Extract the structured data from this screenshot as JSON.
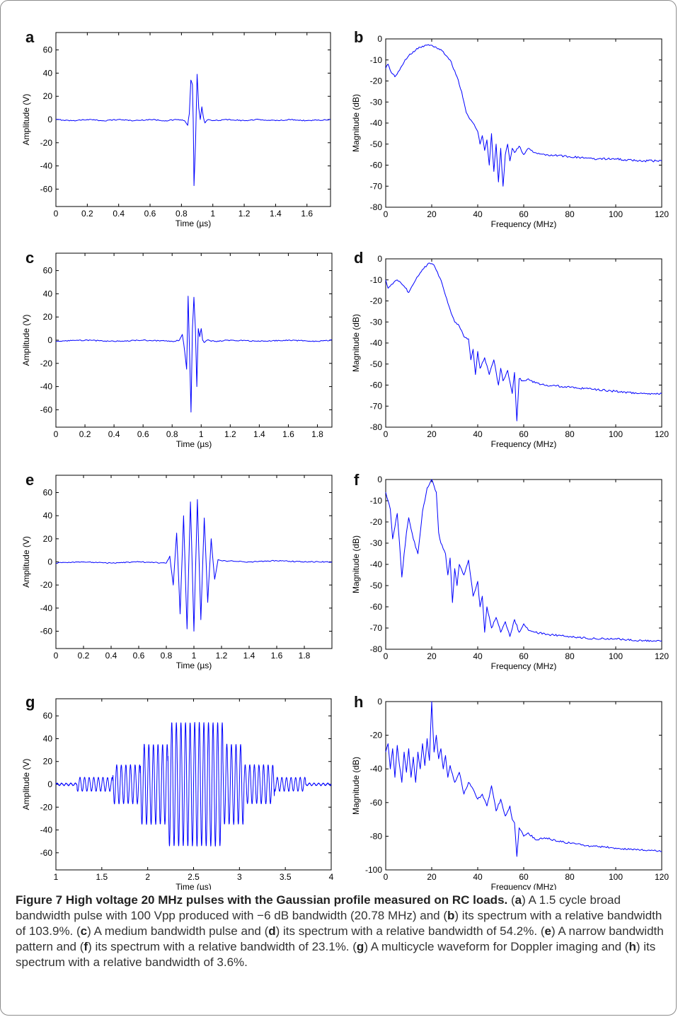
{
  "figure": {
    "caption": {
      "title": "Figure 7 High voltage 20 MHz pulses with the Gaussian profile measured on RC loads.",
      "parts": [
        {
          "open": " (",
          "letter": "a",
          "text": ") A 1.5 cycle broad bandwidth pulse with 100 Vpp produced with −6 dB bandwidth (20.78 MHz) and"
        },
        {
          "open": " (",
          "letter": "b",
          "text": ") its spectrum with a relative bandwidth of 103.9%."
        },
        {
          "open": " (",
          "letter": "c",
          "text": ") A medium bandwidth pulse and"
        },
        {
          "open": " (",
          "letter": "d",
          "text": ") its spectrum with a relative bandwidth of 54.2%."
        },
        {
          "open": " (",
          "letter": "e",
          "text": ") A narrow bandwidth pattern and"
        },
        {
          "open": " (",
          "letter": "f",
          "text": ") its spectrum with a relative bandwidth of 23.1%."
        },
        {
          "open": " (",
          "letter": "g",
          "text": ") A multicycle waveform for Doppler imaging and"
        },
        {
          "open": " (",
          "letter": "h",
          "text": ") its spectrum with a relative bandwidth of 3.6%."
        }
      ]
    },
    "line_color": "#0000ff"
  },
  "chart_data": [
    {
      "panel": "a",
      "type": "line",
      "xlabel": "Time (µs)",
      "ylabel": "Amplitude (V)",
      "xlim": [
        0,
        1.75
      ],
      "ylim": [
        -75,
        75
      ],
      "xticks": [
        0,
        0.2,
        0.4,
        0.6,
        0.8,
        1,
        1.2,
        1.4,
        1.6
      ],
      "xtick_labels": [
        "0",
        "0.2",
        "0.4",
        "0.6",
        "0.8",
        "1",
        "1.2",
        "1.4",
        "1.6"
      ],
      "yticks": [
        -60,
        -40,
        -20,
        0,
        20,
        40,
        60
      ],
      "ytick_labels": [
        "-60",
        "-40",
        "-20",
        "0",
        "20",
        "40",
        "60"
      ],
      "series": [
        {
          "x": [
            0,
            0.1,
            0.2,
            0.3,
            0.4,
            0.5,
            0.6,
            0.7,
            0.78,
            0.82,
            0.84,
            0.85,
            0.86,
            0.87,
            0.875,
            0.88,
            0.89,
            0.9,
            0.91,
            0.92,
            0.93,
            0.94,
            0.95,
            0.97,
            1.0,
            1.1,
            1.2,
            1.3,
            1.4,
            1.5,
            1.6,
            1.75
          ],
          "y": [
            0,
            -1,
            0,
            -1,
            0,
            -1,
            0,
            -1,
            0,
            -1,
            -5,
            5,
            34,
            30,
            0,
            -57,
            -20,
            39,
            10,
            0,
            11,
            2,
            -3,
            0,
            -1,
            0,
            -1,
            0,
            -1,
            0,
            -1,
            0
          ]
        }
      ]
    },
    {
      "panel": "b",
      "type": "line",
      "xlabel": "Frequency (MHz)",
      "ylabel": "Magnitude (dB)",
      "xlim": [
        0,
        120
      ],
      "ylim": [
        -80,
        0
      ],
      "xticks": [
        0,
        20,
        40,
        60,
        80,
        100,
        120
      ],
      "xtick_labels": [
        "0",
        "20",
        "40",
        "60",
        "80",
        "100",
        "120"
      ],
      "yticks": [
        -80,
        -70,
        -60,
        -50,
        -40,
        -30,
        -20,
        -10,
        0
      ],
      "ytick_labels": [
        "-80",
        "-70",
        "-60",
        "-50",
        "-40",
        "-30",
        "-20",
        "-10",
        "0"
      ],
      "series": [
        {
          "x": [
            0,
            1,
            2,
            4,
            6,
            8,
            10,
            12,
            15,
            18,
            20,
            24,
            28,
            31,
            33,
            35,
            36,
            38,
            40,
            41,
            42,
            43,
            44,
            45,
            46,
            47,
            48,
            49,
            50,
            51,
            52,
            53,
            54,
            55,
            56,
            58,
            60,
            62,
            65,
            70,
            80,
            90,
            100,
            110,
            120
          ],
          "y": [
            -14,
            -12,
            -15,
            -18,
            -15,
            -11,
            -8,
            -6,
            -4,
            -3,
            -3,
            -5,
            -10,
            -18,
            -25,
            -35,
            -37,
            -40,
            -44,
            -50,
            -46,
            -53,
            -48,
            -60,
            -45,
            -63,
            -50,
            -68,
            -52,
            -70,
            -55,
            -50,
            -58,
            -52,
            -54,
            -51,
            -55,
            -52,
            -54,
            -55,
            -56,
            -57,
            -57,
            -58,
            -58
          ]
        }
      ]
    },
    {
      "panel": "c",
      "type": "line",
      "xlabel": "Time (µs)",
      "ylabel": "Amplitude (V)",
      "xlim": [
        0,
        1.9
      ],
      "ylim": [
        -75,
        75
      ],
      "xticks": [
        0,
        0.2,
        0.4,
        0.6,
        0.8,
        1,
        1.2,
        1.4,
        1.6,
        1.8
      ],
      "xtick_labels": [
        "0",
        "0.2",
        "0.4",
        "0.6",
        "0.8",
        "1",
        "1.2",
        "1.4",
        "1.6",
        "1.8"
      ],
      "yticks": [
        -60,
        -40,
        -20,
        0,
        20,
        40,
        60
      ],
      "ytick_labels": [
        "-60",
        "-40",
        "-20",
        "0",
        "20",
        "40",
        "60"
      ],
      "series": [
        {
          "x": [
            0,
            0.2,
            0.4,
            0.6,
            0.8,
            0.85,
            0.87,
            0.88,
            0.9,
            0.91,
            0.92,
            0.93,
            0.94,
            0.95,
            0.96,
            0.97,
            0.98,
            0.99,
            1.0,
            1.01,
            1.02,
            1.04,
            1.1,
            1.2,
            1.4,
            1.6,
            1.8,
            1.9
          ],
          "y": [
            -1,
            0,
            -1,
            0,
            -1,
            0,
            5,
            -3,
            -25,
            38,
            -10,
            -62,
            10,
            37,
            10,
            -40,
            10,
            3,
            10,
            0,
            -2,
            0,
            -1,
            0,
            -1,
            0,
            -1,
            0
          ]
        }
      ]
    },
    {
      "panel": "d",
      "type": "line",
      "xlabel": "Frequency (MHz)",
      "ylabel": "Magnitude (dB)",
      "xlim": [
        0,
        120
      ],
      "ylim": [
        -80,
        0
      ],
      "xticks": [
        0,
        20,
        40,
        60,
        80,
        100,
        120
      ],
      "xtick_labels": [
        "0",
        "20",
        "40",
        "60",
        "80",
        "100",
        "120"
      ],
      "yticks": [
        -80,
        -70,
        -60,
        -50,
        -40,
        -30,
        -20,
        -10,
        0
      ],
      "ytick_labels": [
        "-80",
        "-70",
        "-60",
        "-50",
        "-40",
        "-30",
        "-20",
        "-10",
        "0"
      ],
      "series": [
        {
          "x": [
            0,
            1,
            3,
            5,
            8,
            10,
            13,
            16,
            19,
            21,
            24,
            27,
            30,
            32,
            34,
            36,
            37,
            38,
            39,
            40,
            41,
            43,
            45,
            47,
            49,
            50,
            51,
            53,
            55,
            56,
            57,
            58,
            60,
            62,
            65,
            70,
            80,
            90,
            100,
            110,
            120
          ],
          "y": [
            -10,
            -14,
            -12,
            -10,
            -13,
            -16,
            -10,
            -5,
            -2,
            -3,
            -10,
            -21,
            -30,
            -32,
            -37,
            -38,
            -48,
            -43,
            -55,
            -44,
            -52,
            -47,
            -55,
            -48,
            -60,
            -52,
            -58,
            -53,
            -64,
            -54,
            -77,
            -57,
            -58,
            -57,
            -59,
            -60,
            -61,
            -62,
            -63,
            -64,
            -64
          ]
        }
      ]
    },
    {
      "panel": "e",
      "type": "line",
      "xlabel": "Time (µs)",
      "ylabel": "Amplitude (V)",
      "xlim": [
        0,
        2
      ],
      "ylim": [
        -75,
        75
      ],
      "xticks": [
        0,
        0.2,
        0.4,
        0.6,
        0.8,
        1,
        1.2,
        1.4,
        1.6,
        1.8
      ],
      "xtick_labels": [
        "0",
        "0.2",
        "0.4",
        "0.6",
        "0.8",
        "1",
        "1.2",
        "1.4",
        "1.6",
        "1.8"
      ],
      "yticks": [
        -60,
        -40,
        -20,
        0,
        20,
        40,
        60
      ],
      "ytick_labels": [
        "-60",
        "-40",
        "-20",
        "0",
        "20",
        "40",
        "60"
      ],
      "series": [
        {
          "x": [
            0,
            0.2,
            0.4,
            0.6,
            0.8,
            0.825,
            0.85,
            0.875,
            0.9,
            0.925,
            0.95,
            0.975,
            1.0,
            1.025,
            1.05,
            1.075,
            1.1,
            1.125,
            1.15,
            1.175,
            1.2,
            1.4,
            1.6,
            1.8,
            2.0
          ],
          "y": [
            -1,
            0,
            -1,
            0,
            -1,
            5,
            -20,
            25,
            -45,
            40,
            -58,
            52,
            -60,
            54,
            -50,
            38,
            -35,
            20,
            -15,
            2,
            1,
            0,
            1,
            0,
            0
          ]
        }
      ]
    },
    {
      "panel": "f",
      "type": "line",
      "xlabel": "Frequency (MHz)",
      "ylabel": "Magnitude (dB)",
      "xlim": [
        0,
        120
      ],
      "ylim": [
        -80,
        0
      ],
      "xticks": [
        0,
        20,
        40,
        60,
        80,
        100,
        120
      ],
      "xtick_labels": [
        "0",
        "20",
        "40",
        "60",
        "80",
        "100",
        "120"
      ],
      "yticks": [
        -80,
        -70,
        -60,
        -50,
        -40,
        -30,
        -20,
        -10,
        0
      ],
      "ytick_labels": [
        "-80",
        "-70",
        "-60",
        "-50",
        "-40",
        "-30",
        "-20",
        "-10",
        "0"
      ],
      "series": [
        {
          "x": [
            0,
            1,
            2,
            3,
            5,
            6,
            7,
            9,
            10,
            12,
            14,
            16,
            18,
            20,
            22,
            23,
            24,
            26,
            27,
            28,
            29,
            30,
            31,
            32,
            34,
            36,
            38,
            40,
            41,
            42,
            43,
            44,
            46,
            48,
            50,
            52,
            54,
            56,
            58,
            60,
            62,
            65,
            70,
            80,
            90,
            100,
            110,
            120
          ],
          "y": [
            -6,
            -10,
            -14,
            -28,
            -16,
            -30,
            -46,
            -25,
            -18,
            -28,
            -35,
            -15,
            -4,
            0,
            -6,
            -25,
            -30,
            -35,
            -45,
            -37,
            -58,
            -42,
            -50,
            -40,
            -45,
            -38,
            -55,
            -48,
            -60,
            -55,
            -72,
            -60,
            -70,
            -65,
            -72,
            -67,
            -74,
            -66,
            -72,
            -68,
            -71,
            -72,
            -73,
            -74,
            -75,
            -75,
            -76,
            -76
          ]
        }
      ]
    },
    {
      "panel": "g",
      "type": "line",
      "xlabel": "Time (µs)",
      "ylabel": "Amplitude (V)",
      "xlim": [
        1,
        4
      ],
      "ylim": [
        -75,
        75
      ],
      "xticks": [
        1,
        1.5,
        2,
        2.5,
        3,
        3.5,
        4
      ],
      "xtick_labels": [
        "1",
        "1.5",
        "2",
        "2.5",
        "3",
        "3.5",
        "4"
      ],
      "yticks": [
        -60,
        -40,
        -20,
        0,
        20,
        40,
        60
      ],
      "ytick_labels": [
        "-60",
        "-40",
        "-20",
        "0",
        "20",
        "40",
        "60"
      ],
      "envelope": [
        {
          "x0": 1.0,
          "x1": 1.23,
          "amp": 1
        },
        {
          "x0": 1.23,
          "x1": 1.62,
          "amp": 6
        },
        {
          "x0": 1.62,
          "x1": 1.92,
          "amp": 17
        },
        {
          "x0": 1.92,
          "x1": 2.22,
          "amp": 35
        },
        {
          "x0": 2.22,
          "x1": 2.82,
          "amp": 54
        },
        {
          "x0": 2.82,
          "x1": 3.05,
          "amp": 35
        },
        {
          "x0": 3.05,
          "x1": 3.38,
          "amp": 17
        },
        {
          "x0": 3.38,
          "x1": 3.72,
          "amp": 6
        },
        {
          "x0": 3.72,
          "x1": 4.0,
          "amp": 1
        }
      ],
      "series": [
        {
          "frequency_mhz": 20,
          "min": -57,
          "max": 54
        }
      ]
    },
    {
      "panel": "h",
      "type": "line",
      "xlabel": "Frequency (MHz)",
      "ylabel": "Magnitude (dB)",
      "xlim": [
        0,
        120
      ],
      "ylim": [
        -100,
        0
      ],
      "xticks": [
        0,
        20,
        40,
        60,
        80,
        100,
        120
      ],
      "xtick_labels": [
        "0",
        "20",
        "40",
        "60",
        "80",
        "100",
        "120"
      ],
      "yticks": [
        -100,
        -80,
        -60,
        -40,
        -20,
        0
      ],
      "ytick_labels": [
        "-100",
        "-80",
        "-60",
        "-40",
        "-20",
        "0"
      ],
      "series": [
        {
          "x": [
            0,
            1,
            2,
            3,
            4,
            5,
            6,
            7,
            8,
            9,
            10,
            11,
            12,
            13,
            14,
            15,
            16,
            17,
            18,
            19,
            20,
            21,
            22,
            23,
            24,
            25,
            26,
            27,
            28,
            29,
            30,
            32,
            34,
            36,
            38,
            40,
            42,
            44,
            46,
            48,
            50,
            52,
            54,
            55,
            56,
            57,
            58,
            60,
            62,
            65,
            70,
            75,
            80,
            90,
            100,
            110,
            120
          ],
          "y": [
            -30,
            -25,
            -40,
            -28,
            -45,
            -26,
            -38,
            -48,
            -30,
            -42,
            -28,
            -45,
            -33,
            -48,
            -30,
            -40,
            -25,
            -38,
            -22,
            -35,
            0,
            -30,
            -20,
            -34,
            -28,
            -40,
            -32,
            -45,
            -38,
            -43,
            -48,
            -42,
            -55,
            -48,
            -52,
            -58,
            -55,
            -62,
            -50,
            -65,
            -58,
            -68,
            -62,
            -70,
            -72,
            -92,
            -75,
            -80,
            -78,
            -82,
            -81,
            -83,
            -84,
            -86,
            -87,
            -88,
            -89
          ]
        }
      ]
    }
  ]
}
